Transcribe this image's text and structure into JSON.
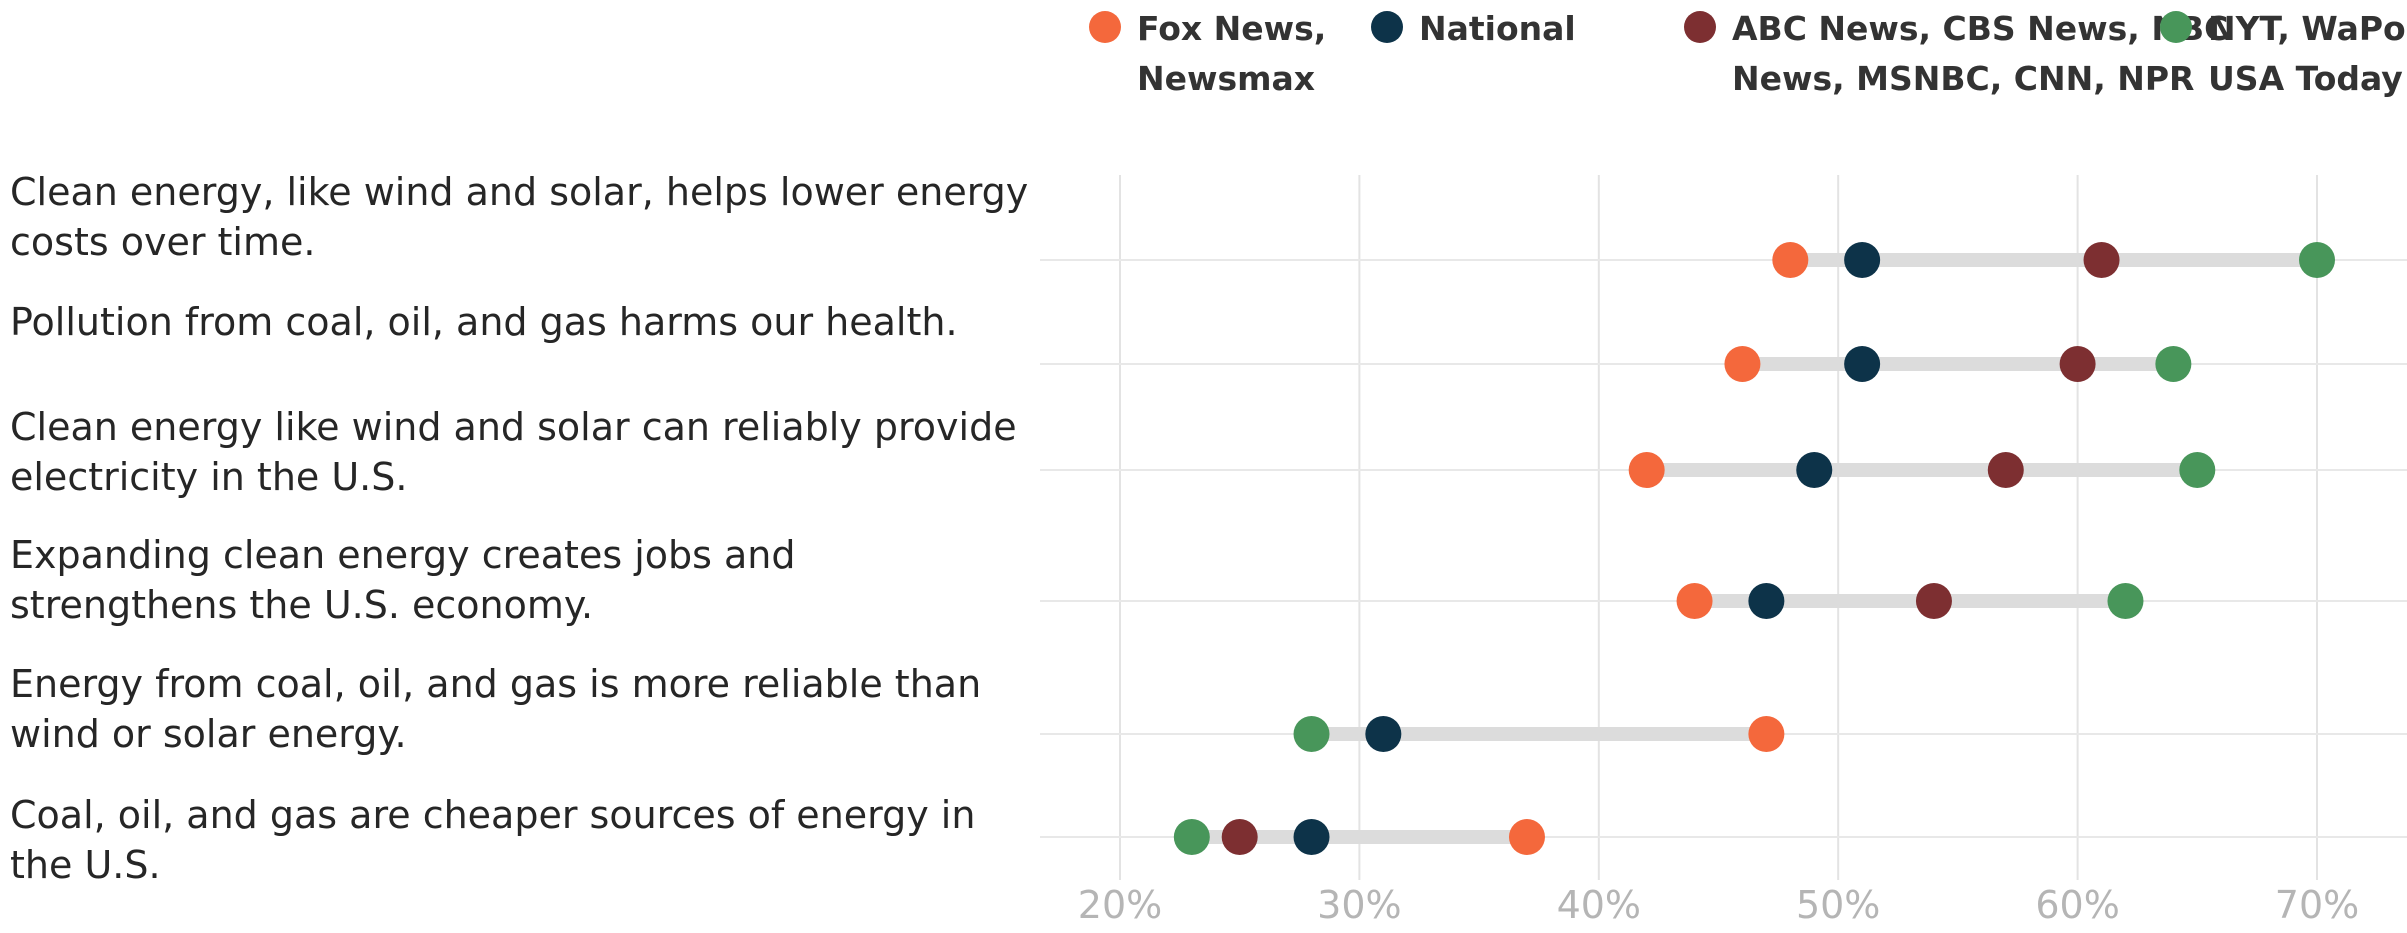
{
  "chart_data": {
    "type": "dot",
    "legend_position": "top-right",
    "grid": true,
    "xlim": [
      16,
      72
    ],
    "x_ticks": [
      "20%",
      "30%",
      "40%",
      "50%",
      "60%",
      "70%"
    ],
    "x_tick_values": [
      20,
      30,
      40,
      50,
      60,
      70
    ],
    "series": [
      {
        "key": "fox",
        "name_lines": [
          "Fox News,",
          "Newsmax"
        ],
        "color": "#f4683c"
      },
      {
        "key": "national",
        "name_lines": [
          "National"
        ],
        "color": "#0d3349"
      },
      {
        "key": "broadcast",
        "name_lines": [
          "ABC News, CBS News, NBC",
          "News, MSNBC, CNN, NPR"
        ],
        "color": "#7d2f31"
      },
      {
        "key": "papers",
        "name_lines": [
          "NYT, WaPo,",
          "USA Today"
        ],
        "color": "#48965a"
      }
    ],
    "categories": [
      {
        "label_lines": [
          "Clean energy, like wind and solar, helps lower energy",
          "costs over time."
        ],
        "values": {
          "fox": 48,
          "national": 51,
          "broadcast": 61,
          "papers": 70
        }
      },
      {
        "label_lines": [
          "Pollution from coal, oil, and gas harms our health."
        ],
        "values": {
          "fox": 46,
          "national": 51,
          "broadcast": 60,
          "papers": 64
        }
      },
      {
        "label_lines": [
          "Clean energy like wind and solar can reliably provide",
          "electricity in the U.S."
        ],
        "values": {
          "fox": 42,
          "national": 49,
          "broadcast": 57,
          "papers": 65
        }
      },
      {
        "label_lines": [
          "Expanding clean energy creates jobs and",
          "strengthens the U.S. economy."
        ],
        "values": {
          "fox": 44,
          "national": 47,
          "broadcast": 54,
          "papers": 62
        }
      },
      {
        "label_lines": [
          "Energy from coal, oil, and gas is more reliable than",
          "wind or solar energy."
        ],
        "values": {
          "fox": 47,
          "national": 31,
          "papers": 28
        }
      },
      {
        "label_lines": [
          "Coal, oil, and gas are cheaper sources of energy in",
          "the U.S."
        ],
        "values": {
          "fox": 37,
          "national": 28,
          "broadcast": 25,
          "papers": 23
        }
      }
    ]
  }
}
